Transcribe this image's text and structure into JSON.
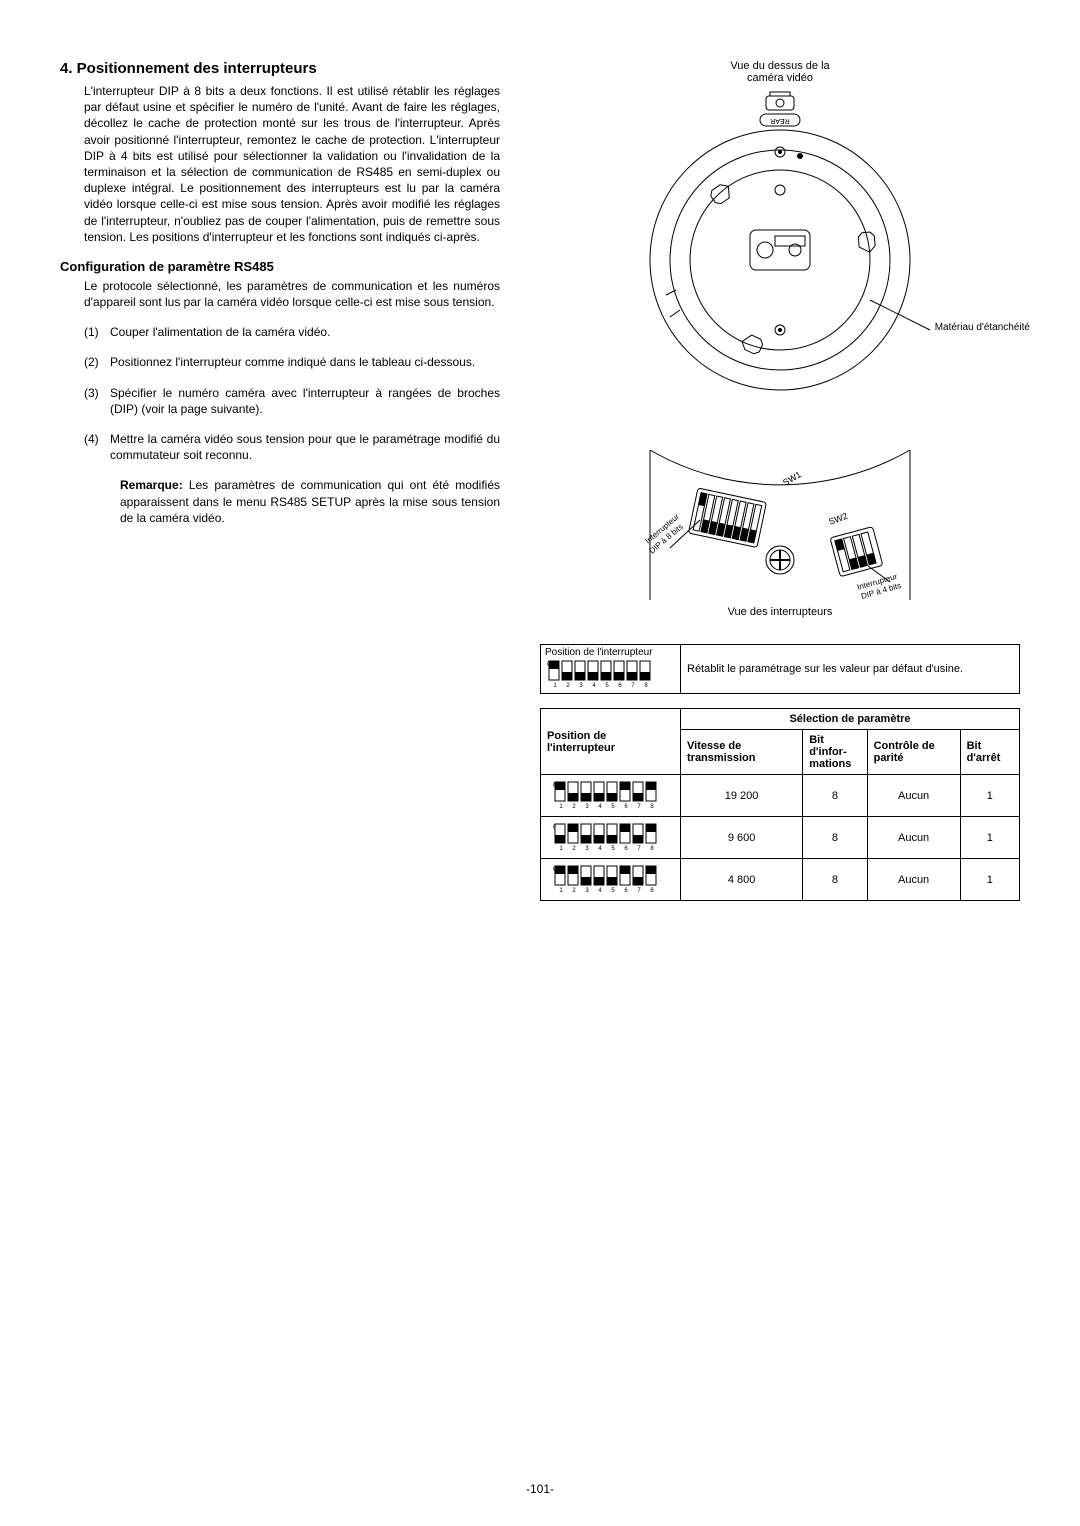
{
  "section_title": "4. Positionnement des interrupteurs",
  "main_para": "L'interrupteur DIP à 8 bits a deux fonctions. Il est utilisé rétablir les réglages par défaut usine et spécifier le numéro de l'unité. Avant de faire les réglages, décollez le cache de protection monté sur les trous de l'interrupteur. Après avoir positionné l'interrupteur, remontez le cache de protection. L'interrupteur DIP à 4 bits est utilisé pour sélectionner la validation ou l'invalidation de la terminaison et la sélection de communication de RS485 en semi-duplex ou duplexe intégral. Le positionnement des interrupteurs est lu par la caméra vidéo lorsque celle-ci est mise sous tension. Après avoir modifié les réglages de l'interrupteur, n'oubliez pas de couper l'alimentation, puis de remettre sous tension. Les positions d'interrupteur et les fonctions sont indiqués ci-après.",
  "sub_heading": "Configuration de paramètre RS485",
  "sub_para": "Le protocole sélectionné, les paramètres de communication et les numéros d'appareil sont lus par la caméra vidéo lorsque celle-ci est mise sous tension.",
  "steps": [
    {
      "num": "(1)",
      "text": "Couper l'alimentation de la caméra vidéo."
    },
    {
      "num": "(2)",
      "text": "Positionnez l'interrupteur comme indiqué dans le tableau ci-dessous."
    },
    {
      "num": "(3)",
      "text": "Spécifier le numéro caméra avec l'interrupteur à rangées de broches (DIP) (voir la page suivante)."
    },
    {
      "num": "(4)",
      "text": "Mettre la caméra vidéo sous tension pour que le paramétrage modifié du commutateur soit reconnu."
    }
  ],
  "remark_label": "Remarque:",
  "remark_text": " Les paramètres de communication qui ont été modifiés apparaissent dans le menu RS485 SETUP après la mise sous tension de la caméra vidéo.",
  "top_caption": "Vue du dessus de la\ncaméra vidéo",
  "seal_label": "Matériau d'étanchéité",
  "rear_label": "REAR",
  "dip8_label": "Interrupteur\nDIP à 8 bits",
  "dip4_label": "Interrupteur\nDIP à 4 bits",
  "sw1_label": "SW1",
  "sw2_label": "SW2",
  "bottom_caption": "Vue des interrupteurs",
  "reset_table": {
    "pos_label": "Position de l'interrupteur",
    "on_label": "ON",
    "desc": "Rétablit le paramétrage sur les valeur par défaut d'usine."
  },
  "param_table": {
    "pos_header": "Position de l'interrupteur",
    "sel_header": "Sélection de paramètre",
    "cols": [
      "Vitesse de transmission",
      "Bit d'infor-\nmations",
      "Contrôle de parité",
      "Bit d'arrêt"
    ],
    "on_label": "ON",
    "rows": [
      {
        "dip": [
          1,
          0,
          0,
          0,
          0,
          1,
          0,
          1
        ],
        "vals": [
          "19 200",
          "8",
          "Aucun",
          "1"
        ]
      },
      {
        "dip": [
          0,
          1,
          0,
          0,
          0,
          1,
          0,
          1
        ],
        "vals": [
          "9 600",
          "8",
          "Aucun",
          "1"
        ]
      },
      {
        "dip": [
          1,
          1,
          0,
          0,
          0,
          1,
          0,
          1
        ],
        "vals": [
          "4 800",
          "8",
          "Aucun",
          "1"
        ]
      }
    ]
  },
  "page_number": "-101-",
  "colors": {
    "line": "#000000",
    "gray_fill": "#d0d0d0",
    "light_gray": "#e8e8e8"
  }
}
